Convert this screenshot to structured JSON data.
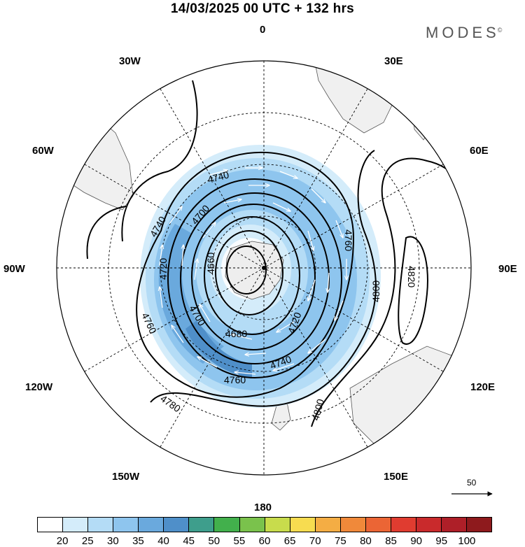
{
  "title": "14/03/2025  00 UTC  + 132 hrs",
  "logo": "MODES",
  "logo_mark": "©",
  "longitude_labels": {
    "lon_0": "0",
    "lon_30e": "30E",
    "lon_60e": "60E",
    "lon_90e": "90E",
    "lon_120e": "120E",
    "lon_150e": "150E",
    "lon_180": "180",
    "lon_150w": "150W",
    "lon_120w": "120W",
    "lon_90w": "90W",
    "lon_60w": "60W",
    "lon_30w": "30W"
  },
  "contour_labels": [
    "4740",
    "4740",
    "4700",
    "4720",
    "4660",
    "4760",
    "4700",
    "4680",
    "4720",
    "4740",
    "4760",
    "4780",
    "4800",
    "4800",
    "4760",
    "4820"
  ],
  "reference_vector": "50",
  "colorbar": {
    "ticks": [
      "20",
      "25",
      "30",
      "35",
      "40",
      "45",
      "50",
      "55",
      "60",
      "65",
      "70",
      "75",
      "80",
      "85",
      "90",
      "95",
      "100"
    ],
    "colors": [
      "#ffffff",
      "#d4ecfa",
      "#b4dcf6",
      "#8ec5ee",
      "#6aa9dd",
      "#4f8fc9",
      "#3e9e8c",
      "#42b04c",
      "#7ac24c",
      "#c8dc4c",
      "#f7dc50",
      "#f4ad44",
      "#f0893a",
      "#eb6535",
      "#e03c30",
      "#c92a2c",
      "#ae1f28",
      "#8e1a1d"
    ]
  }
}
